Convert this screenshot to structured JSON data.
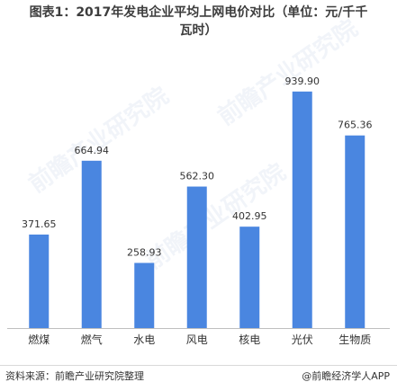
{
  "title_line1": "图表1：2017年发电企业平均上网电价对比（单位：元/千千",
  "title_line2": "瓦时）",
  "footer": {
    "source": "资料来源：前瞻产业研究院整理",
    "credit": "@前瞻经济学人APP"
  },
  "watermark": "前瞻产业研究院",
  "colors": {
    "bar": "#4a86e0",
    "axis": "#bfbfbf",
    "text": "#333333"
  },
  "chart_data": {
    "type": "bar",
    "categories": [
      "燃煤",
      "燃气",
      "水电",
      "风电",
      "核电",
      "光伏",
      "生物质"
    ],
    "values": [
      371.65,
      664.94,
      258.93,
      562.3,
      402.95,
      939.9,
      765.36
    ],
    "value_labels": [
      "371.65",
      "664.94",
      "258.93",
      "562.30",
      "402.95",
      "939.90",
      "765.36"
    ],
    "ylim": [
      0,
      1000
    ],
    "grid": false,
    "legend": "none"
  }
}
